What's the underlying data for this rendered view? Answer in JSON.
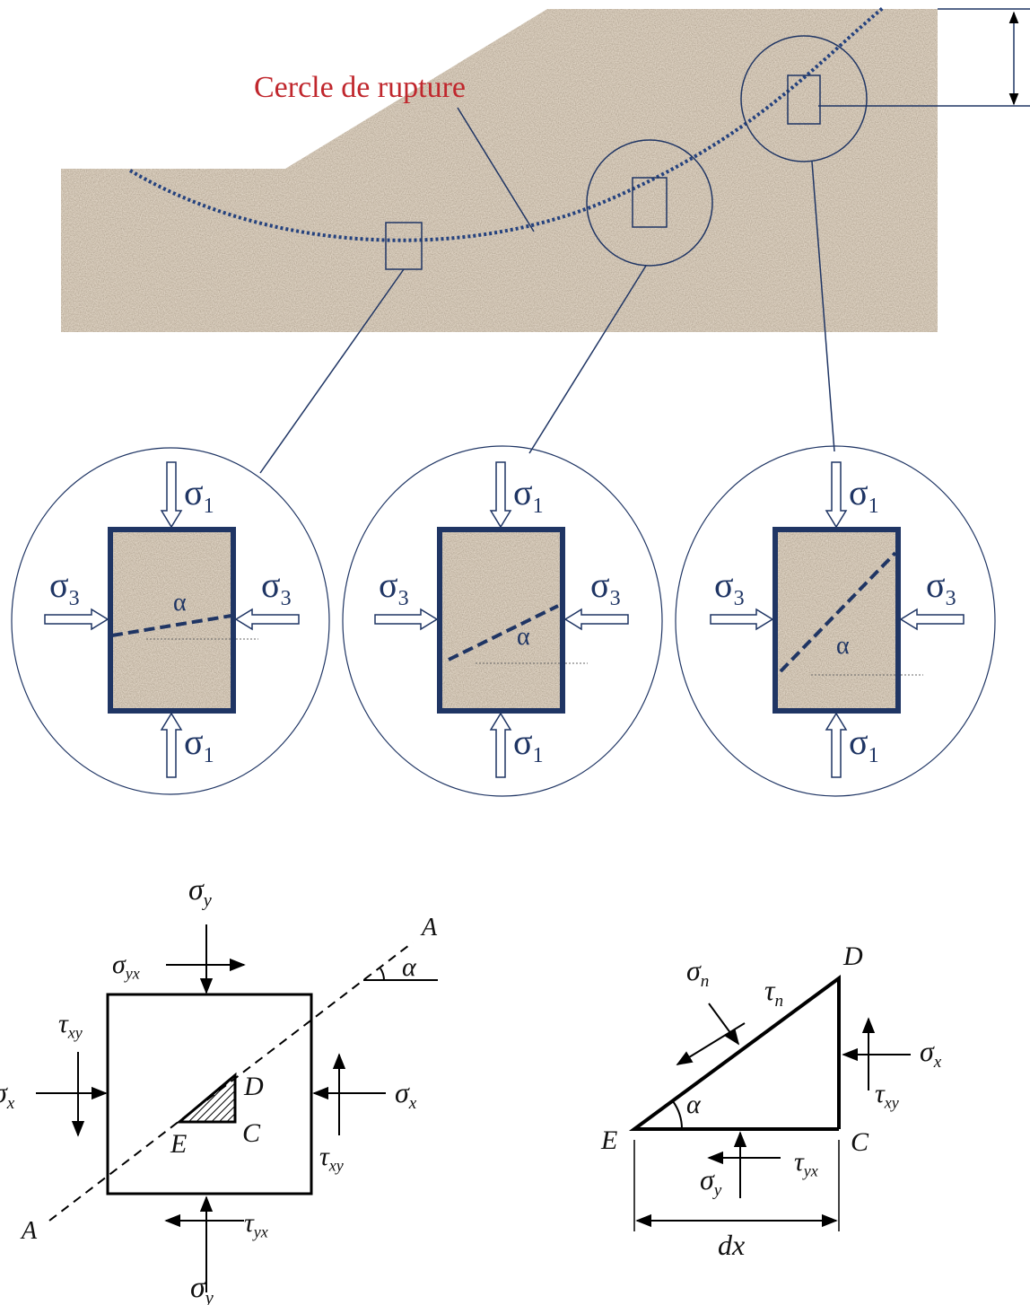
{
  "slope": {
    "failure_circle_label": "Cercle de rupture"
  },
  "elements": [
    {
      "sigma1_top": {
        "base": "σ",
        "sub": "1"
      },
      "sigma3_left": {
        "base": "σ",
        "sub": "3"
      },
      "sigma3_right": {
        "base": "σ",
        "sub": "3"
      },
      "sigma1_bottom": {
        "base": "σ",
        "sub": "1"
      },
      "angle": "α"
    },
    {
      "sigma1_top": {
        "base": "σ",
        "sub": "1"
      },
      "sigma3_left": {
        "base": "σ",
        "sub": "3"
      },
      "sigma3_right": {
        "base": "σ",
        "sub": "3"
      },
      "sigma1_bottom": {
        "base": "σ",
        "sub": "1"
      },
      "angle": "α"
    },
    {
      "sigma1_top": {
        "base": "σ",
        "sub": "1"
      },
      "sigma3_left": {
        "base": "σ",
        "sub": "3"
      },
      "sigma3_right": {
        "base": "σ",
        "sub": "3"
      },
      "sigma1_bottom": {
        "base": "σ",
        "sub": "1"
      },
      "angle": "α"
    }
  ],
  "stress_element": {
    "sigma_y_top": {
      "base": "σ",
      "sub": "y"
    },
    "sigma_yx": {
      "base": "σ",
      "sub": "yx"
    },
    "tau_xy_left": {
      "base": "τ",
      "sub": "xy"
    },
    "sigma_x_left": {
      "base": "σ",
      "sub": "x"
    },
    "sigma_x_right": {
      "base": "σ",
      "sub": "x"
    },
    "tau_xy_right": {
      "base": "τ",
      "sub": "xy"
    },
    "tau_yx": {
      "base": "τ",
      "sub": "yx"
    },
    "sigma_y_bottom": {
      "base": "σ",
      "sub": "y"
    },
    "plane_top": "A",
    "plane_bottom": "A",
    "angle": "α",
    "D": "D",
    "C": "C",
    "E": "E"
  },
  "triangle": {
    "sigma_n": {
      "base": "σ",
      "sub": "n"
    },
    "tau_n": {
      "base": "τ",
      "sub": "n"
    },
    "D": "D",
    "C": "C",
    "E": "E",
    "angle": "α",
    "sigma_x": {
      "base": "σ",
      "sub": "x"
    },
    "tau_xy": {
      "base": "τ",
      "sub": "xy"
    },
    "tau_yx": {
      "base": "τ",
      "sub": "yx"
    },
    "sigma_y": {
      "base": "σ",
      "sub": "y"
    },
    "width": "dx"
  }
}
